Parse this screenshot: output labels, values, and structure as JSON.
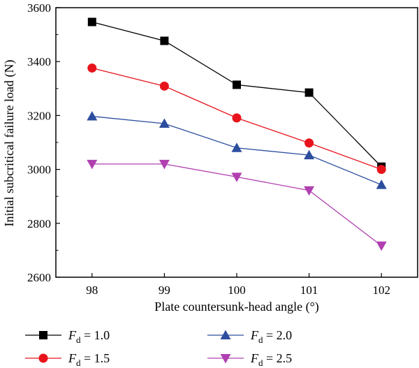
{
  "chart_data": {
    "type": "line",
    "title": "",
    "xlabel": "Plate countersunk-head angle (°)",
    "ylabel": "Initial subcritical failure load (N)",
    "x": [
      98,
      99,
      100,
      101,
      102
    ],
    "x_tick_labels": [
      "98",
      "99",
      "100",
      "101",
      "102"
    ],
    "xlim": [
      97.5,
      102.5
    ],
    "ylim": [
      2600,
      3600
    ],
    "y_ticks": [
      2600,
      2800,
      3000,
      3200,
      3400,
      3600
    ],
    "y_tick_labels": [
      "2600",
      "2800",
      "3000",
      "3200",
      "3400",
      "3600"
    ],
    "grid": false,
    "legend_position": "bottom",
    "series": [
      {
        "name": "Fd = 1.0",
        "label_var": "F",
        "label_sub": "d",
        "label_rest": " = 1.0",
        "marker": "square",
        "color": "#000000",
        "values": [
          3547,
          3477,
          3314,
          3285,
          3010
        ]
      },
      {
        "name": "Fd = 1.5",
        "label_var": "F",
        "label_sub": "d",
        "label_rest": " = 1.5",
        "marker": "circle",
        "color": "#e8141c",
        "values": [
          3376,
          3309,
          3191,
          3098,
          3000
        ]
      },
      {
        "name": "Fd = 2.0",
        "label_var": "F",
        "label_sub": "d",
        "label_rest": " = 2.0",
        "marker": "triangle-up",
        "color": "#2d4e9e",
        "values": [
          3197,
          3170,
          3080,
          3053,
          2943
        ]
      },
      {
        "name": "Fd = 2.5",
        "label_var": "F",
        "label_sub": "d",
        "label_rest": " = 2.5",
        "marker": "triangle-down",
        "color": "#b040b0",
        "values": [
          3020,
          3020,
          2972,
          2922,
          2717
        ]
      }
    ]
  }
}
